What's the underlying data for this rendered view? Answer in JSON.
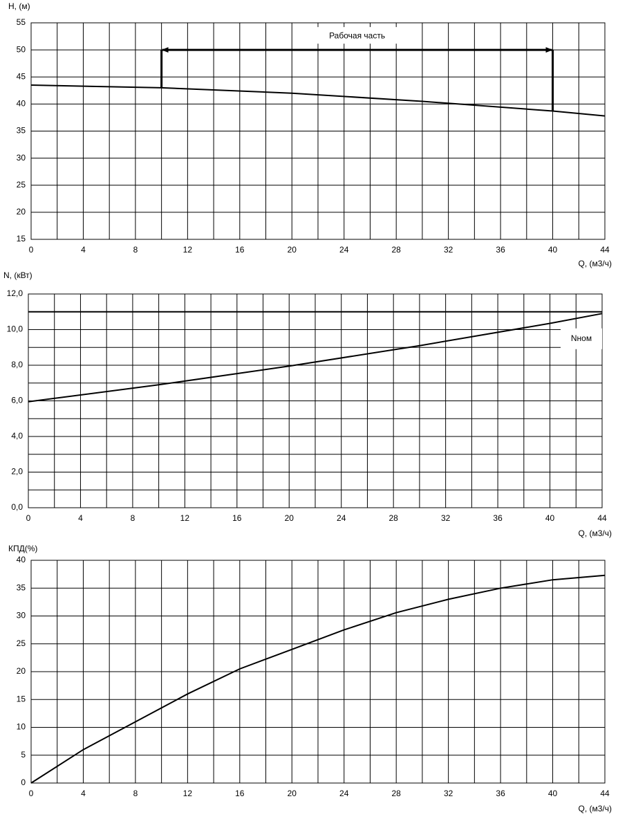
{
  "chart_data": [
    {
      "type": "line",
      "y_label": "H, (м)",
      "x_label": "Q, (м3/ч)",
      "x": [
        0,
        10,
        20,
        30,
        40,
        44
      ],
      "values": [
        43.5,
        43.0,
        42.0,
        40.5,
        38.7,
        37.8
      ],
      "color": "#000000",
      "xlim": [
        0,
        44
      ],
      "xticks": [
        0,
        4,
        8,
        12,
        16,
        20,
        24,
        28,
        32,
        36,
        40,
        44
      ],
      "xgrid": [
        2,
        6,
        10,
        14,
        18,
        22,
        26,
        30,
        34,
        38,
        42
      ],
      "ylim": [
        15,
        55
      ],
      "yticks": [
        15,
        20,
        25,
        30,
        35,
        40,
        45,
        50,
        55
      ],
      "ygrid": [],
      "grid": true,
      "annotation": {
        "text": "Рабочая часть",
        "x": [
          10,
          40
        ],
        "y": 50
      }
    },
    {
      "type": "line",
      "y_label": "N, (кВт)",
      "x_label": "Q, (м3/ч)",
      "x": [
        0,
        10,
        20,
        30,
        40,
        44
      ],
      "values": [
        5.95,
        6.9,
        7.95,
        9.1,
        10.35,
        10.9
      ],
      "color": "#000000",
      "xlim": [
        0,
        44
      ],
      "xticks": [
        0,
        4,
        8,
        12,
        16,
        20,
        24,
        28,
        32,
        36,
        40,
        44
      ],
      "xgrid": [
        2,
        6,
        10,
        14,
        18,
        22,
        26,
        30,
        34,
        38,
        42
      ],
      "ylim": [
        0,
        12
      ],
      "yticks": [
        {
          "value": 0,
          "label": "0,0"
        },
        {
          "value": 2,
          "label": "2,0"
        },
        {
          "value": 4,
          "label": "4,0"
        },
        {
          "value": 6,
          "label": "6,0"
        },
        {
          "value": 8,
          "label": "8,0"
        },
        {
          "value": 10,
          "label": "10,0"
        },
        {
          "value": 12,
          "label": "12,0"
        }
      ],
      "ygrid": [
        1,
        3,
        5,
        7,
        9,
        11
      ],
      "grid": true,
      "reference_line": {
        "value": 11,
        "label": "Nном"
      }
    },
    {
      "type": "line",
      "y_label": "КПД(%)",
      "x_label": "Q, (м3/ч)",
      "x": [
        0,
        4,
        8,
        12,
        16,
        20,
        24,
        28,
        32,
        36,
        40,
        44
      ],
      "values": [
        0,
        6,
        11,
        16,
        20.5,
        24,
        27.5,
        30.6,
        33,
        35,
        36.5,
        37.3
      ],
      "color": "#000000",
      "xlim": [
        0,
        44
      ],
      "xticks": [
        0,
        4,
        8,
        12,
        16,
        20,
        24,
        28,
        32,
        36,
        40,
        44
      ],
      "xgrid": [
        2,
        6,
        10,
        14,
        18,
        22,
        26,
        30,
        34,
        38,
        42
      ],
      "ylim": [
        0,
        40
      ],
      "yticks": [
        0,
        5,
        10,
        15,
        20,
        25,
        30,
        35,
        40
      ],
      "ygrid": [],
      "grid": true
    }
  ]
}
